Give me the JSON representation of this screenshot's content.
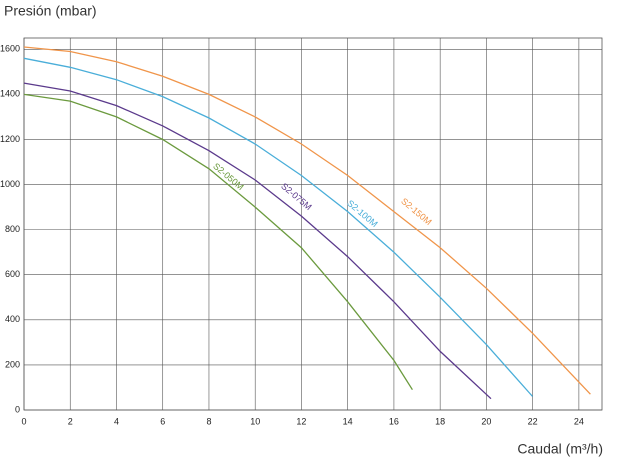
{
  "chart_data": {
    "type": "line",
    "ylabel": "Presión (mbar)",
    "xlabel": "Caudal (m³/h)",
    "xlim": [
      0,
      25
    ],
    "ylim": [
      0,
      1650
    ],
    "xticks": [
      0,
      2,
      4,
      6,
      8,
      10,
      12,
      14,
      16,
      18,
      20,
      22,
      24
    ],
    "yticks": [
      0,
      200,
      400,
      600,
      800,
      1000,
      1200,
      1400,
      1600
    ],
    "grid": true,
    "series": [
      {
        "name": "S2-050M",
        "color": "#6b9a3e",
        "x": [
          0,
          2,
          4,
          6,
          8,
          10,
          12,
          14,
          16,
          16.8
        ],
        "values": [
          1400,
          1370,
          1300,
          1200,
          1070,
          900,
          720,
          480,
          220,
          90
        ]
      },
      {
        "name": "S2-075M",
        "color": "#5b3a8c",
        "x": [
          0,
          2,
          4,
          6,
          8,
          10,
          12,
          14,
          16,
          18,
          20.2
        ],
        "values": [
          1450,
          1415,
          1350,
          1260,
          1150,
          1020,
          860,
          680,
          480,
          260,
          50
        ]
      },
      {
        "name": "S2-100M",
        "color": "#4aaed9",
        "x": [
          0,
          2,
          4,
          6,
          8,
          10,
          12,
          14,
          16,
          18,
          20,
          22
        ],
        "values": [
          1560,
          1520,
          1465,
          1390,
          1295,
          1180,
          1040,
          880,
          700,
          500,
          290,
          60
        ]
      },
      {
        "name": "S2-150M",
        "color": "#f0954a",
        "x": [
          0,
          2,
          4,
          6,
          8,
          10,
          12,
          14,
          16,
          18,
          20,
          22,
          24.5
        ],
        "values": [
          1610,
          1590,
          1545,
          1480,
          1400,
          1300,
          1180,
          1040,
          880,
          720,
          540,
          340,
          70
        ]
      }
    ]
  }
}
